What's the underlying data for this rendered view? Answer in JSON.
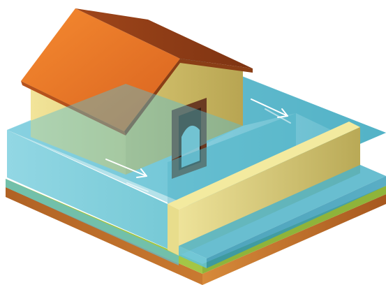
{
  "illustration": {
    "subject": "flooded-house-with-flood-barrier",
    "icons": [
      "house-icon",
      "flood-water-icon",
      "flood-wall-icon",
      "flow-arrow-icon"
    ],
    "colors": {
      "roof": "#e8742a",
      "roof_shadow": "#b85a1c",
      "wall": "#e6d88a",
      "wall_side": "#c9b860",
      "door": "#5a3320",
      "water": "#4fb6c9",
      "water_light": "#a5dbe8",
      "grass": "#a7c94a",
      "soil": "#c0702a",
      "barrier": "#e6dc8a",
      "arrow": "#ffffff"
    }
  }
}
